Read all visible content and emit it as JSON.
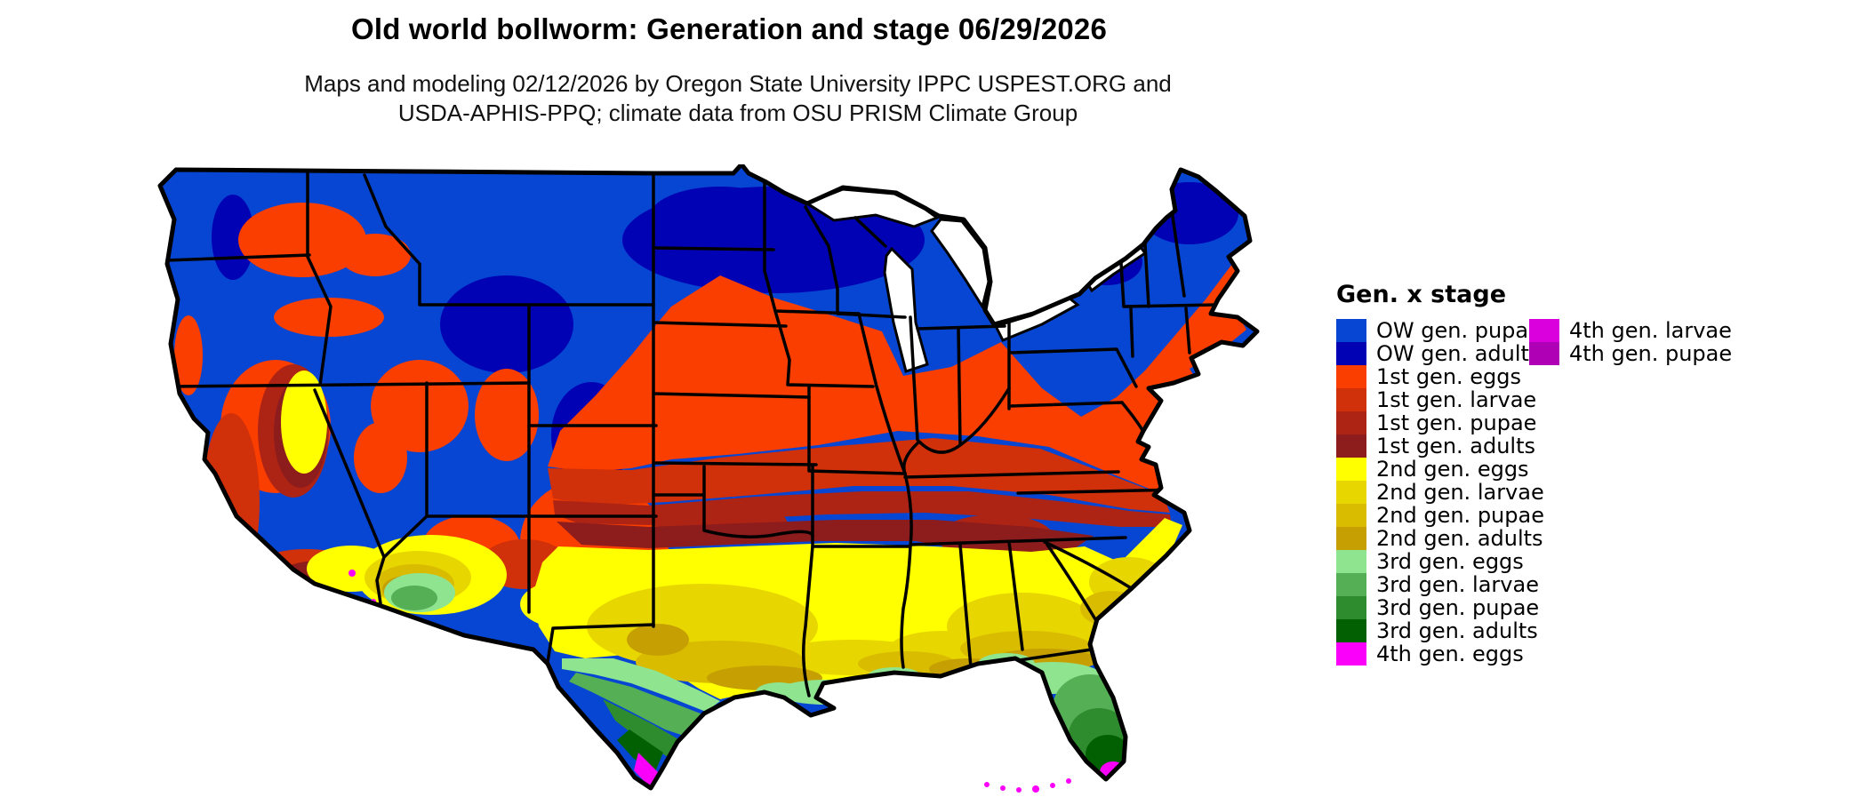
{
  "header": {
    "title": "Old world bollworm: Generation and stage 06/29/2026",
    "subtitle_line1": "Maps and modeling 02/12/2026 by Oregon State University IPPC USPEST.ORG and",
    "subtitle_line2": "USDA-APHIS-PPQ; climate data from OSU PRISM Climate Group"
  },
  "legend": {
    "title": "Gen. x stage",
    "column1": [
      {
        "label": "OW gen. pupae",
        "color": "#0646d2"
      },
      {
        "label": "OW gen. adults",
        "color": "#0102b4"
      },
      {
        "label": "1st gen. eggs",
        "color": "#fa3e00"
      },
      {
        "label": "1st gen. larvae",
        "color": "#d0300a"
      },
      {
        "label": "1st gen. pupae",
        "color": "#ae2414"
      },
      {
        "label": "1st gen. adults",
        "color": "#8d1c1c"
      },
      {
        "label": "2nd gen. eggs",
        "color": "#ffff00"
      },
      {
        "label": "2nd gen. larvae",
        "color": "#e8d600"
      },
      {
        "label": "2nd gen. pupae",
        "color": "#d9bc00"
      },
      {
        "label": "2nd gen. adults",
        "color": "#c6a003"
      },
      {
        "label": "3rd gen. eggs",
        "color": "#8fe58f"
      },
      {
        "label": "3rd gen. larvae",
        "color": "#55af55"
      },
      {
        "label": "3rd gen. pupae",
        "color": "#2e8b2e"
      },
      {
        "label": "3rd gen. adults",
        "color": "#026002"
      },
      {
        "label": "4th gen. eggs",
        "color": "#fa00fa"
      }
    ],
    "column2": [
      {
        "label": "4th gen. larvae",
        "color": "#d900dd"
      },
      {
        "label": "4th gen. pupae",
        "color": "#af00b5"
      }
    ]
  },
  "map": {
    "water_color": "#ffffff",
    "border_color": "#000000",
    "palette": {
      "ow_pupae": "#0646d2",
      "ow_adults": "#0102b4",
      "g1_eggs": "#fa3e00",
      "g1_larvae": "#d0300a",
      "g1_pupae": "#ae2414",
      "g1_adults": "#8d1c1c",
      "g2_eggs": "#ffff00",
      "g2_larvae": "#e8d600",
      "g2_pupae": "#d9bc00",
      "g2_adults": "#c6a003",
      "g3_eggs": "#8fe58f",
      "g3_larvae": "#55af55",
      "g3_pupae": "#2e8b2e",
      "g3_adults": "#026002",
      "g4_eggs": "#fa00fa",
      "g4_larvae": "#d900dd",
      "g4_pupae": "#af00b5"
    }
  }
}
